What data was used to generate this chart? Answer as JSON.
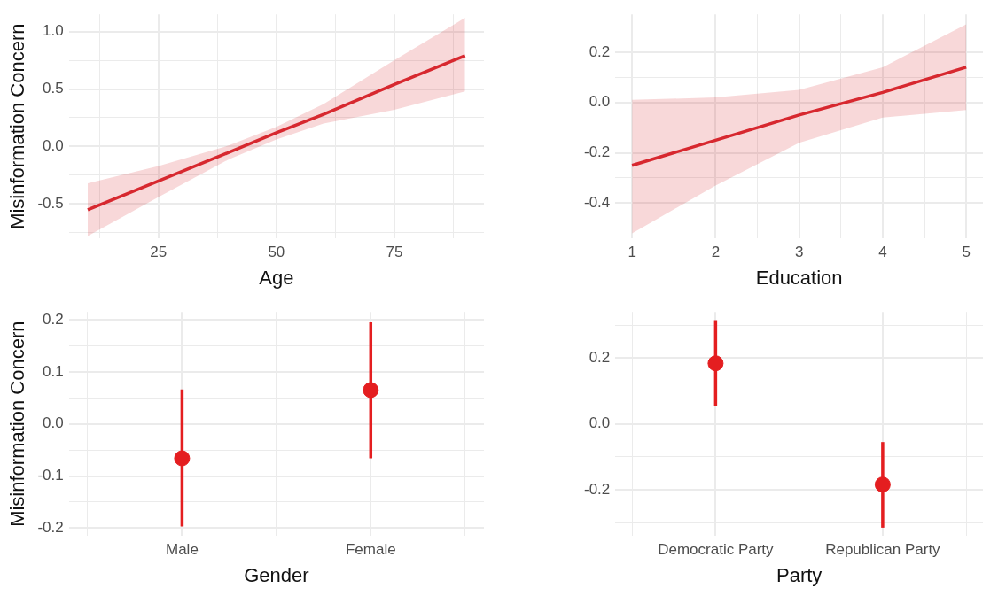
{
  "chart_data": [
    {
      "type": "line",
      "xlabel": "Age",
      "ylabel": "Misinformation Concern",
      "xlim": [
        6,
        94
      ],
      "ylim": [
        -0.8,
        1.15
      ],
      "xticks": [
        {
          "value": 12.5,
          "label": null
        },
        25,
        {
          "value": 37.5,
          "label": null
        },
        50,
        {
          "value": 62.5,
          "label": null
        },
        75,
        {
          "value": 87.5,
          "label": null
        }
      ],
      "yticks": [
        {
          "value": -0.75,
          "label": null
        },
        {
          "value": -0.5,
          "label": "-0.5"
        },
        {
          "value": -0.25,
          "label": null
        },
        {
          "value": 0,
          "label": "0.0"
        },
        {
          "value": 0.25,
          "label": null
        },
        {
          "value": 0.5,
          "label": "0.5"
        },
        {
          "value": 0.75,
          "label": null
        },
        {
          "value": 1,
          "label": "1.0"
        }
      ],
      "series": [
        {
          "color": "#d7282f",
          "x": [
            10,
            25,
            40,
            50,
            60,
            75,
            90
          ],
          "values": [
            -0.55,
            -0.3,
            -0.05,
            0.12,
            0.28,
            0.54,
            0.79
          ],
          "lower": [
            -0.78,
            -0.44,
            -0.11,
            0.06,
            0.2,
            0.32,
            0.48
          ],
          "upper": [
            -0.32,
            -0.17,
            0.01,
            0.17,
            0.37,
            0.75,
            1.12
          ]
        }
      ],
      "grid": true,
      "legend": false,
      "marker": "none",
      "line_style": "solid"
    },
    {
      "type": "line",
      "xlabel": "Education",
      "xlim": [
        0.8,
        5.2
      ],
      "ylim": [
        -0.54,
        0.35
      ],
      "xticks": [
        1,
        {
          "value": 1.5,
          "label": null
        },
        2,
        {
          "value": 2.5,
          "label": null
        },
        3,
        {
          "value": 3.5,
          "label": null
        },
        4,
        {
          "value": 4.5,
          "label": null
        },
        5
      ],
      "yticks": [
        {
          "value": -0.5,
          "label": null
        },
        {
          "value": -0.4,
          "label": "-0.4"
        },
        {
          "value": -0.3,
          "label": null
        },
        {
          "value": -0.2,
          "label": "-0.2"
        },
        {
          "value": -0.1,
          "label": null
        },
        {
          "value": 0,
          "label": "0.0"
        },
        {
          "value": 0.1,
          "label": null
        },
        {
          "value": 0.2,
          "label": "0.2"
        },
        {
          "value": 0.3,
          "label": null
        }
      ],
      "series": [
        {
          "color": "#d7282f",
          "x": [
            1,
            2,
            3,
            4,
            5
          ],
          "values": [
            -0.25,
            -0.15,
            -0.05,
            0.04,
            0.14
          ],
          "lower": [
            -0.52,
            -0.33,
            -0.16,
            -0.06,
            -0.03
          ],
          "upper": [
            0.01,
            0.02,
            0.05,
            0.14,
            0.31
          ]
        }
      ],
      "grid": true,
      "legend": false,
      "marker": "none",
      "line_style": "solid"
    },
    {
      "type": "scatter",
      "xlabel": "Gender",
      "ylabel": "Misinformation Concern",
      "categories": [
        "Male",
        "Female"
      ],
      "ylim": [
        -0.215,
        0.215
      ],
      "yticks": [
        {
          "value": -0.2,
          "label": "-0.2"
        },
        {
          "value": -0.15,
          "label": null
        },
        {
          "value": -0.1,
          "label": "-0.1"
        },
        {
          "value": -0.05,
          "label": null
        },
        {
          "value": 0,
          "label": "0.0"
        },
        {
          "value": 0.05,
          "label": null
        },
        {
          "value": 0.1,
          "label": "0.1"
        },
        {
          "value": 0.15,
          "label": null
        },
        {
          "value": 0.2,
          "label": "0.2"
        }
      ],
      "series": [
        {
          "color": "#e41e20",
          "values": [
            -0.066,
            0.065
          ],
          "errors": [
            [
              -0.197,
              0.066
            ],
            [
              -0.066,
              0.195
            ]
          ]
        }
      ],
      "grid": true,
      "legend": false,
      "marker": "circle"
    },
    {
      "type": "scatter",
      "xlabel": "Party",
      "categories": [
        "Democratic Party",
        "Republican Party"
      ],
      "ylim": [
        -0.34,
        0.34
      ],
      "yticks": [
        {
          "value": -0.3,
          "label": null
        },
        {
          "value": -0.2,
          "label": "-0.2"
        },
        {
          "value": -0.1,
          "label": null
        },
        {
          "value": 0,
          "label": "0.0"
        },
        {
          "value": 0.1,
          "label": null
        },
        {
          "value": 0.2,
          "label": "0.2"
        },
        {
          "value": 0.3,
          "label": null
        }
      ],
      "series": [
        {
          "color": "#e41e20",
          "values": [
            0.184,
            -0.184
          ],
          "errors": [
            [
              0.055,
              0.315
            ],
            [
              -0.315,
              -0.055
            ]
          ]
        }
      ],
      "grid": true,
      "legend": false,
      "marker": "circle"
    }
  ]
}
